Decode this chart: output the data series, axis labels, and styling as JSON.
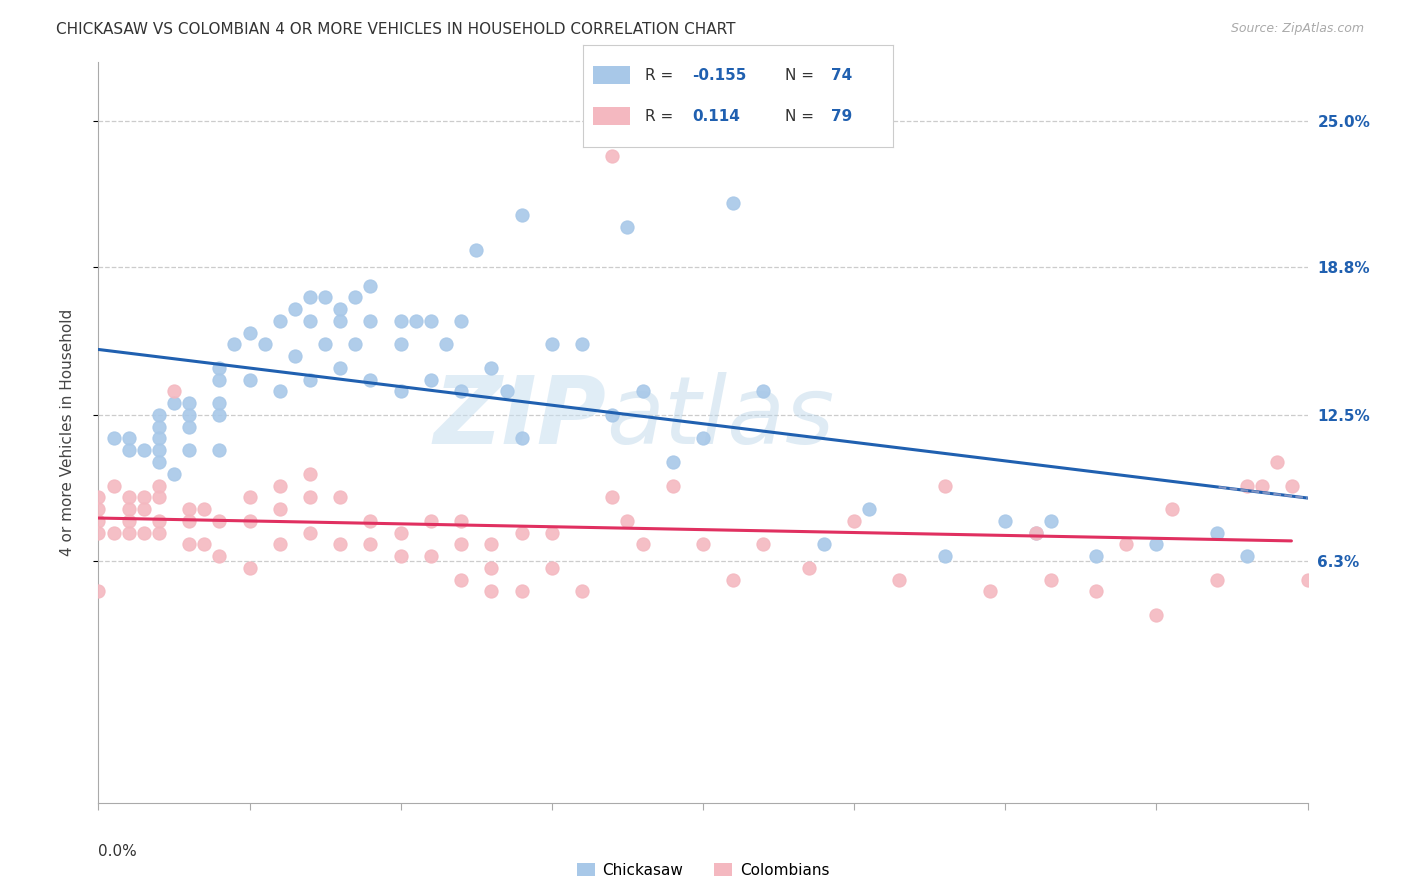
{
  "title": "CHICKASAW VS COLOMBIAN 4 OR MORE VEHICLES IN HOUSEHOLD CORRELATION CHART",
  "source": "Source: ZipAtlas.com",
  "ylabel": "4 or more Vehicles in Household",
  "ytick_labels": [
    "6.3%",
    "12.5%",
    "18.8%",
    "25.0%"
  ],
  "ytick_values": [
    0.063,
    0.125,
    0.188,
    0.25
  ],
  "xlim": [
    0.0,
    0.4
  ],
  "ylim": [
    -0.04,
    0.275
  ],
  "legend_r_chickasaw": "-0.155",
  "legend_n_chickasaw": "74",
  "legend_r_colombian": "0.114",
  "legend_n_colombian": "79",
  "chickasaw_color": "#a8c8e8",
  "colombian_color": "#f4b8c0",
  "trendline_chickasaw_color": "#2060b0",
  "trendline_colombian_color": "#e03060",
  "background_color": "#ffffff",
  "watermark_zip": "ZIP",
  "watermark_atlas": "atlas",
  "chickasaw_x": [
    0.005,
    0.01,
    0.01,
    0.015,
    0.02,
    0.02,
    0.02,
    0.02,
    0.02,
    0.025,
    0.025,
    0.03,
    0.03,
    0.03,
    0.03,
    0.04,
    0.04,
    0.04,
    0.04,
    0.04,
    0.045,
    0.05,
    0.05,
    0.055,
    0.06,
    0.06,
    0.065,
    0.065,
    0.07,
    0.07,
    0.07,
    0.075,
    0.075,
    0.08,
    0.08,
    0.08,
    0.085,
    0.085,
    0.09,
    0.09,
    0.09,
    0.1,
    0.1,
    0.1,
    0.105,
    0.11,
    0.11,
    0.115,
    0.12,
    0.12,
    0.125,
    0.13,
    0.135,
    0.14,
    0.14,
    0.15,
    0.16,
    0.17,
    0.175,
    0.18,
    0.19,
    0.2,
    0.21,
    0.22,
    0.24,
    0.255,
    0.28,
    0.3,
    0.31,
    0.315,
    0.33,
    0.35,
    0.37,
    0.38
  ],
  "chickasaw_y": [
    0.115,
    0.115,
    0.11,
    0.11,
    0.125,
    0.12,
    0.115,
    0.11,
    0.105,
    0.13,
    0.1,
    0.13,
    0.125,
    0.12,
    0.11,
    0.145,
    0.14,
    0.13,
    0.125,
    0.11,
    0.155,
    0.16,
    0.14,
    0.155,
    0.165,
    0.135,
    0.17,
    0.15,
    0.175,
    0.165,
    0.14,
    0.175,
    0.155,
    0.17,
    0.165,
    0.145,
    0.175,
    0.155,
    0.18,
    0.165,
    0.14,
    0.165,
    0.155,
    0.135,
    0.165,
    0.165,
    0.14,
    0.155,
    0.165,
    0.135,
    0.195,
    0.145,
    0.135,
    0.21,
    0.115,
    0.155,
    0.155,
    0.125,
    0.205,
    0.135,
    0.105,
    0.115,
    0.215,
    0.135,
    0.07,
    0.085,
    0.065,
    0.08,
    0.075,
    0.08,
    0.065,
    0.07,
    0.075,
    0.065
  ],
  "colombian_x": [
    0.0,
    0.0,
    0.0,
    0.0,
    0.0,
    0.005,
    0.005,
    0.01,
    0.01,
    0.01,
    0.01,
    0.015,
    0.015,
    0.015,
    0.02,
    0.02,
    0.02,
    0.02,
    0.025,
    0.03,
    0.03,
    0.03,
    0.035,
    0.035,
    0.04,
    0.04,
    0.05,
    0.05,
    0.05,
    0.06,
    0.06,
    0.06,
    0.07,
    0.07,
    0.07,
    0.08,
    0.08,
    0.09,
    0.09,
    0.1,
    0.1,
    0.11,
    0.11,
    0.12,
    0.12,
    0.12,
    0.13,
    0.13,
    0.13,
    0.14,
    0.14,
    0.15,
    0.15,
    0.16,
    0.17,
    0.17,
    0.175,
    0.18,
    0.19,
    0.2,
    0.21,
    0.22,
    0.235,
    0.25,
    0.265,
    0.28,
    0.295,
    0.31,
    0.315,
    0.33,
    0.34,
    0.35,
    0.355,
    0.37,
    0.38,
    0.385,
    0.39,
    0.395,
    0.4
  ],
  "colombian_y": [
    0.09,
    0.085,
    0.08,
    0.075,
    0.05,
    0.095,
    0.075,
    0.09,
    0.085,
    0.08,
    0.075,
    0.09,
    0.085,
    0.075,
    0.095,
    0.09,
    0.08,
    0.075,
    0.135,
    0.085,
    0.08,
    0.07,
    0.085,
    0.07,
    0.08,
    0.065,
    0.09,
    0.08,
    0.06,
    0.095,
    0.085,
    0.07,
    0.1,
    0.09,
    0.075,
    0.09,
    0.07,
    0.08,
    0.07,
    0.075,
    0.065,
    0.08,
    0.065,
    0.08,
    0.07,
    0.055,
    0.07,
    0.06,
    0.05,
    0.075,
    0.05,
    0.075,
    0.06,
    0.05,
    0.235,
    0.09,
    0.08,
    0.07,
    0.095,
    0.07,
    0.055,
    0.07,
    0.06,
    0.08,
    0.055,
    0.095,
    0.05,
    0.075,
    0.055,
    0.05,
    0.07,
    0.04,
    0.085,
    0.055,
    0.095,
    0.095,
    0.105,
    0.095,
    0.055
  ]
}
